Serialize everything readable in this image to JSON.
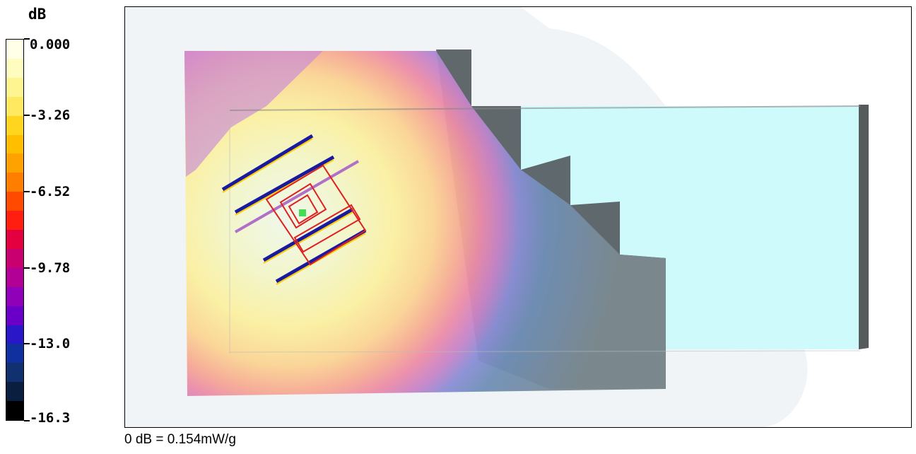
{
  "chart_data": {
    "type": "heatmap",
    "title": "",
    "colorbar": {
      "unit_label": "dB",
      "range": [
        -16.3,
        0.0
      ],
      "tick_labels": [
        "0.000",
        "-3.26",
        "-6.52",
        "-9.78",
        "-13.0",
        "-16.3"
      ],
      "tick_values": [
        0.0,
        -3.26,
        -6.52,
        -9.78,
        -13.0,
        -16.3
      ],
      "colors": [
        "#fffee6",
        "#fffcc0",
        "#fff590",
        "#ffe960",
        "#ffd520",
        "#ffbe00",
        "#ffa200",
        "#ff7e00",
        "#ff4a00",
        "#ff1e10",
        "#e40040",
        "#c80070",
        "#b20096",
        "#9000b8",
        "#6a00c8",
        "#2a18c8",
        "#1030a0",
        "#103070",
        "#0a1e40",
        "#000000"
      ]
    },
    "reference": "0 dB = 0.154mW/g"
  }
}
